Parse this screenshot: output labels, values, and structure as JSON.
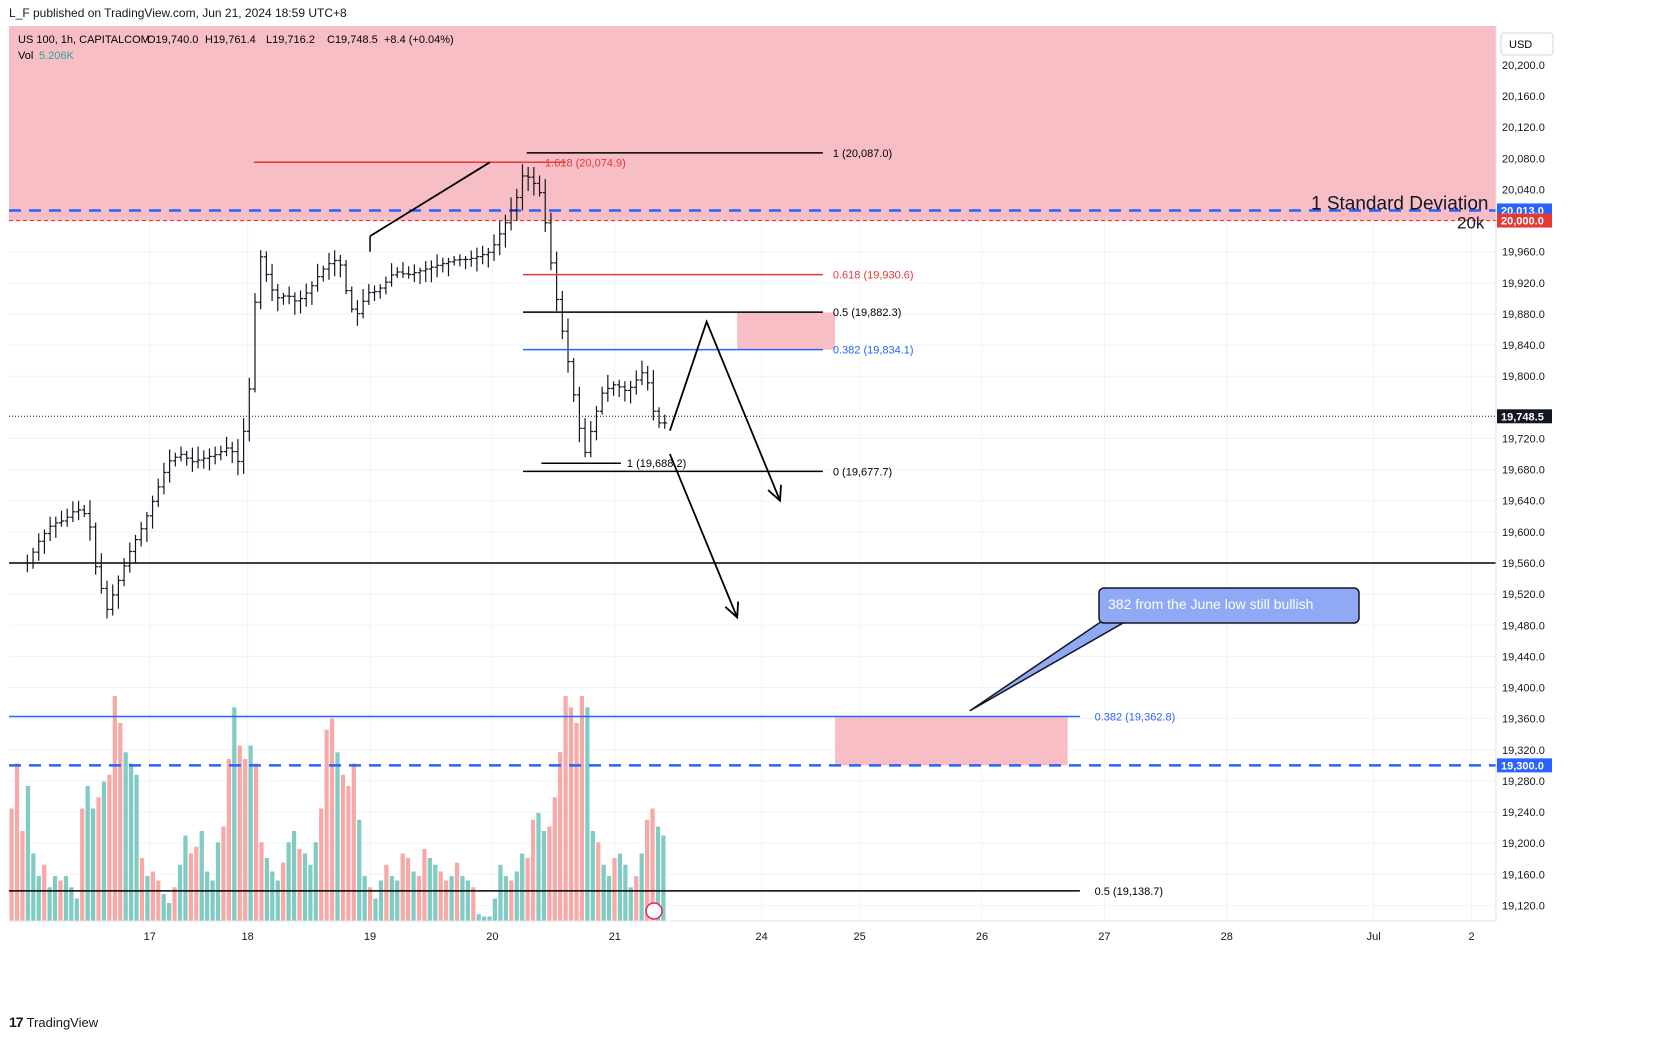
{
  "header": {
    "published": "L_F published on TradingView.com, Jun 21, 2024 18:59 UTC+8"
  },
  "legend": {
    "symbol": "US 100, 1h, CAPITALCOM",
    "open": "O19,740.0",
    "high": "H19,761.4",
    "low": "L19,716.2",
    "close": "C19,748.5",
    "change": "+8.4 (+0.04%)",
    "vol_label": "Vol",
    "vol_value": "5.206K"
  },
  "colors": {
    "bull": "#26a69a",
    "bear": "#ef5350",
    "zone": "#f8bbc2",
    "blue": "#2962ff",
    "red": "#e53935",
    "grid": "#f0f3fa"
  },
  "currency": "USD",
  "footer": {
    "brand": "TradingView",
    "mark": "17"
  },
  "chart_data": {
    "type": "candlestick",
    "symbol": "US 100",
    "timeframe": "1h",
    "broker": "CAPITALCOM",
    "ylim": [
      19100,
      20250
    ],
    "y_ticks": [
      20200,
      20160,
      20120,
      20080,
      20040,
      19960,
      19920,
      19880,
      19840,
      19800,
      19720,
      19680,
      19640,
      19600,
      19560,
      19520,
      19480,
      19440,
      19400,
      19360,
      19320,
      19280,
      19240,
      19200,
      19160,
      19120
    ],
    "y_tick_labels": [
      "20,200.0",
      "20,160.0",
      "20,120.0",
      "20,080.0",
      "20,040.0",
      "19,960.0",
      "19,920.0",
      "19,880.0",
      "19,840.0",
      "19,800.0",
      "19,720.0",
      "19,680.0",
      "19,640.0",
      "19,600.0",
      "19,560.0",
      "19,520.0",
      "19,480.0",
      "19,440.0",
      "19,400.0",
      "19,360.0",
      "19,320.0",
      "19,280.0",
      "19,240.0",
      "19,200.0",
      "19,160.0",
      "19,120.0"
    ],
    "x_labels": [
      {
        "label": "17",
        "day": 1.0
      },
      {
        "label": "18",
        "day": 1.8
      },
      {
        "label": "19",
        "day": 2.8
      },
      {
        "label": "20",
        "day": 3.8
      },
      {
        "label": "21",
        "day": 4.8
      },
      {
        "label": "24",
        "day": 6.0
      },
      {
        "label": "25",
        "day": 6.8
      },
      {
        "label": "26",
        "day": 7.8
      },
      {
        "label": "27",
        "day": 8.8
      },
      {
        "label": "28",
        "day": 9.8
      },
      {
        "label": "Jul",
        "day": 11.0
      },
      {
        "label": "2",
        "day": 11.8
      }
    ],
    "x_range_days": [
      -0.15,
      12.0
    ],
    "price_path": [
      [
        0.0,
        19560
      ],
      [
        0.1,
        19590
      ],
      [
        0.2,
        19610
      ],
      [
        0.3,
        19615
      ],
      [
        0.4,
        19630
      ],
      [
        0.5,
        19620
      ],
      [
        0.55,
        19560
      ],
      [
        0.65,
        19500
      ],
      [
        0.75,
        19540
      ],
      [
        0.85,
        19580
      ],
      [
        0.95,
        19610
      ],
      [
        1.05,
        19650
      ],
      [
        1.15,
        19690
      ],
      [
        1.25,
        19700
      ],
      [
        1.35,
        19690
      ],
      [
        1.45,
        19695
      ],
      [
        1.55,
        19700
      ],
      [
        1.65,
        19710
      ],
      [
        1.72,
        19690
      ],
      [
        1.78,
        19740
      ],
      [
        1.8,
        19760
      ],
      [
        1.84,
        19830
      ],
      [
        1.88,
        19960
      ],
      [
        1.92,
        19950
      ],
      [
        1.98,
        19915
      ],
      [
        2.05,
        19900
      ],
      [
        2.12,
        19905
      ],
      [
        2.2,
        19895
      ],
      [
        2.3,
        19910
      ],
      [
        2.4,
        19935
      ],
      [
        2.5,
        19950
      ],
      [
        2.58,
        19940
      ],
      [
        2.62,
        19890
      ],
      [
        2.7,
        19880
      ],
      [
        2.78,
        19910
      ],
      [
        2.8,
        19905
      ],
      [
        2.9,
        19915
      ],
      [
        3.0,
        19935
      ],
      [
        3.1,
        19930
      ],
      [
        3.2,
        19935
      ],
      [
        3.3,
        19940
      ],
      [
        3.4,
        19945
      ],
      [
        3.5,
        19950
      ],
      [
        3.6,
        19950
      ],
      [
        3.7,
        19955
      ],
      [
        3.78,
        19960
      ],
      [
        3.8,
        19965
      ],
      [
        3.9,
        19995
      ],
      [
        4.0,
        20030
      ],
      [
        4.05,
        20060
      ],
      [
        4.1,
        20055
      ],
      [
        4.18,
        20040
      ],
      [
        4.24,
        19990
      ],
      [
        4.3,
        19920
      ],
      [
        4.38,
        19850
      ],
      [
        4.44,
        19800
      ],
      [
        4.5,
        19740
      ],
      [
        4.56,
        19700
      ],
      [
        4.62,
        19740
      ],
      [
        4.7,
        19780
      ],
      [
        4.8,
        19790
      ],
      [
        4.9,
        19780
      ],
      [
        5.0,
        19800
      ],
      [
        5.05,
        19810
      ],
      [
        5.1,
        19760
      ],
      [
        5.16,
        19740
      ],
      [
        5.22,
        19740
      ]
    ],
    "volume_scale_max": 100,
    "volume": [
      [
        50,
        "bear"
      ],
      [
        70,
        "bear"
      ],
      [
        40,
        "bear"
      ],
      [
        60,
        "bull"
      ],
      [
        30,
        "bull"
      ],
      [
        20,
        "bull"
      ],
      [
        25,
        "bear"
      ],
      [
        15,
        "bull"
      ],
      [
        20,
        "bull"
      ],
      [
        18,
        "bear"
      ],
      [
        20,
        "bull"
      ],
      [
        15,
        "bull"
      ],
      [
        10,
        "bull"
      ],
      [
        50,
        "bear"
      ],
      [
        60,
        "bull"
      ],
      [
        50,
        "bull"
      ],
      [
        55,
        "bear"
      ],
      [
        62,
        "bull"
      ],
      [
        65,
        "bear"
      ],
      [
        100,
        "bear"
      ],
      [
        88,
        "bear"
      ],
      [
        75,
        "bull"
      ],
      [
        70,
        "bull"
      ],
      [
        65,
        "bull"
      ],
      [
        28,
        "bear"
      ],
      [
        20,
        "bull"
      ],
      [
        22,
        "bear"
      ],
      [
        18,
        "bear"
      ],
      [
        12,
        "bull"
      ],
      [
        8,
        "bull"
      ],
      [
        15,
        "bear"
      ],
      [
        25,
        "bull"
      ],
      [
        38,
        "bull"
      ],
      [
        30,
        "bear"
      ],
      [
        33,
        "bear"
      ],
      [
        40,
        "bull"
      ],
      [
        22,
        "bull"
      ],
      [
        18,
        "bull"
      ],
      [
        35,
        "bull"
      ],
      [
        42,
        "bear"
      ],
      [
        72,
        "bear"
      ],
      [
        95,
        "bull"
      ],
      [
        78,
        "bear"
      ],
      [
        72,
        "bear"
      ],
      [
        78,
        "bull"
      ],
      [
        70,
        "bear"
      ],
      [
        35,
        "bear"
      ],
      [
        28,
        "bull"
      ],
      [
        22,
        "bull"
      ],
      [
        18,
        "bull"
      ],
      [
        26,
        "bear"
      ],
      [
        35,
        "bull"
      ],
      [
        40,
        "bull"
      ],
      [
        32,
        "bear"
      ],
      [
        30,
        "bull"
      ],
      [
        25,
        "bull"
      ],
      [
        35,
        "bull"
      ],
      [
        50,
        "bear"
      ],
      [
        85,
        "bear"
      ],
      [
        90,
        "bear"
      ],
      [
        75,
        "bull"
      ],
      [
        65,
        "bear"
      ],
      [
        60,
        "bear"
      ],
      [
        70,
        "bear"
      ],
      [
        45,
        "bull"
      ],
      [
        20,
        "bull"
      ],
      [
        15,
        "bear"
      ],
      [
        10,
        "bull"
      ],
      [
        18,
        "bull"
      ],
      [
        25,
        "bear"
      ],
      [
        20,
        "bull"
      ],
      [
        18,
        "bull"
      ],
      [
        30,
        "bear"
      ],
      [
        28,
        "bear"
      ],
      [
        22,
        "bull"
      ],
      [
        20,
        "bear"
      ],
      [
        32,
        "bear"
      ],
      [
        28,
        "bull"
      ],
      [
        25,
        "bull"
      ],
      [
        22,
        "bear"
      ],
      [
        18,
        "bear"
      ],
      [
        20,
        "bull"
      ],
      [
        26,
        "bear"
      ],
      [
        20,
        "bull"
      ],
      [
        18,
        "bull"
      ],
      [
        15,
        "bear"
      ],
      [
        3,
        "bull"
      ],
      [
        2,
        "bull"
      ],
      [
        2,
        "bull"
      ],
      [
        10,
        "bull"
      ],
      [
        25,
        "bull"
      ],
      [
        20,
        "bull"
      ],
      [
        18,
        "bear"
      ],
      [
        22,
        "bull"
      ],
      [
        30,
        "bull"
      ],
      [
        28,
        "bear"
      ],
      [
        45,
        "bear"
      ],
      [
        48,
        "bull"
      ],
      [
        40,
        "bull"
      ],
      [
        42,
        "bear"
      ],
      [
        55,
        "bear"
      ],
      [
        75,
        "bear"
      ],
      [
        100,
        "bear"
      ],
      [
        95,
        "bear"
      ],
      [
        88,
        "bear"
      ],
      [
        100,
        "bear"
      ],
      [
        95,
        "bull"
      ],
      [
        40,
        "bull"
      ],
      [
        35,
        "bear"
      ],
      [
        25,
        "bull"
      ],
      [
        20,
        "bull"
      ],
      [
        28,
        "bear"
      ],
      [
        30,
        "bull"
      ],
      [
        25,
        "bull"
      ],
      [
        15,
        "bull"
      ],
      [
        20,
        "bear"
      ],
      [
        30,
        "bull"
      ],
      [
        45,
        "bear"
      ],
      [
        50,
        "bear"
      ],
      [
        42,
        "bull"
      ],
      [
        38,
        "bull"
      ]
    ],
    "horizontal_levels": [
      {
        "name": "one-std-dev",
        "value": 20013.0,
        "style": "dashed",
        "color": "#2962ff",
        "label": "1 Standard Deviation",
        "axis_label": "20,013.0"
      },
      {
        "name": "twenty-k",
        "value": 20000.0,
        "style": "dashed",
        "color": "#e53935",
        "label": "20k",
        "axis_label": "20,000.0"
      },
      {
        "name": "support-19560",
        "value": 19560.0,
        "style": "solid",
        "color": "#000000"
      },
      {
        "name": "blue-19300",
        "value": 19300.0,
        "style": "dashed",
        "color": "#2962ff",
        "axis_label": "19,300.0"
      },
      {
        "name": "current-price",
        "value": 19748.5,
        "style": "dotted",
        "color": "#131722",
        "axis_label": "19,748.5"
      }
    ],
    "fib_levels": [
      {
        "text": "1 (20,087.0)",
        "value": 20087.0,
        "color": "#000000",
        "x1": 4.08,
        "x2": 6.5
      },
      {
        "text": "1.618 (20,074.9)",
        "value": 20074.9,
        "color": "#e53935",
        "x1": 1.85,
        "x2": 4.4
      },
      {
        "text": "0.618 (19,930.6)",
        "value": 19930.6,
        "color": "#e53935",
        "x1": 4.05,
        "x2": 6.5
      },
      {
        "text": "0.5 (19,882.3)",
        "value": 19882.3,
        "color": "#000000",
        "x1": 4.05,
        "x2": 6.5
      },
      {
        "text": "0.382 (19,834.1)",
        "value": 19834.1,
        "color": "#2962ff",
        "x1": 4.05,
        "x2": 6.5
      },
      {
        "text": "0 (19,677.7)",
        "value": 19677.7,
        "color": "#000000",
        "x1": 4.05,
        "x2": 6.5
      },
      {
        "text": "1 (19,688.2)",
        "value": 19688.2,
        "color": "#000000",
        "x1": 4.2,
        "x2": 4.85
      },
      {
        "text": "0.382 (19,362.8)",
        "value": 19362.8,
        "color": "#2962ff",
        "x1": -0.15,
        "x2": 8.6
      },
      {
        "text": "0.5 (19,138.7)",
        "value": 19138.7,
        "color": "#000000",
        "x1": -0.15,
        "x2": 8.6
      }
    ],
    "zones": [
      {
        "name": "resistance-zone",
        "x1": -0.15,
        "x2": 12.0,
        "y1": 20000,
        "y2": 20250
      },
      {
        "name": "fib-retrace-zone",
        "x1": 5.8,
        "x2": 6.6,
        "y1": 19834,
        "y2": 19882
      },
      {
        "name": "target-zone",
        "x1": 6.6,
        "x2": 8.5,
        "y1": 19300,
        "y2": 19362
      }
    ],
    "drawings": [
      {
        "name": "trend-leg-1",
        "points": [
          [
            2.8,
            19980
          ],
          [
            3.78,
            20075
          ]
        ]
      },
      {
        "name": "projection-down-left",
        "points": [
          [
            5.25,
            19700
          ],
          [
            5.8,
            19490
          ]
        ]
      },
      {
        "name": "projection-up-then-down",
        "points": [
          [
            5.25,
            19730
          ],
          [
            5.55,
            19870
          ],
          [
            6.15,
            19640
          ]
        ]
      }
    ],
    "annotation": {
      "text": "382 from the June low still bullish",
      "x": 8.8,
      "y": 19520,
      "anchor_x": 7.7,
      "anchor_y": 19370
    }
  }
}
